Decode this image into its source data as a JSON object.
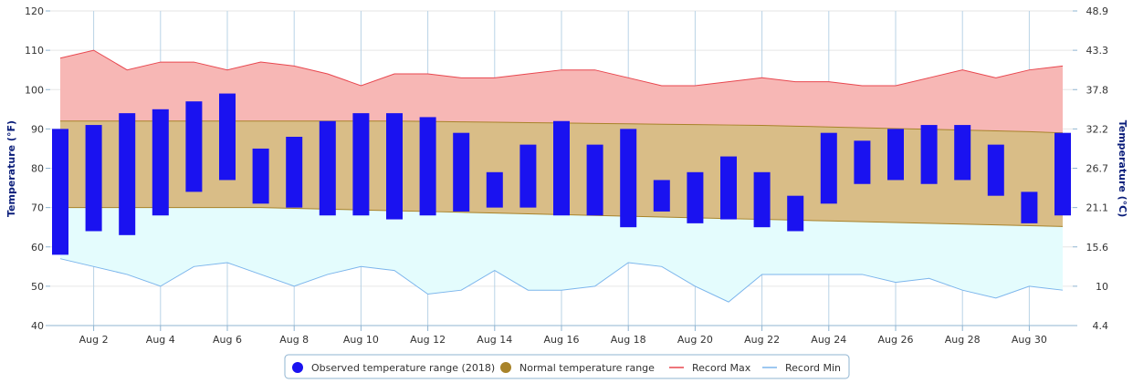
{
  "chart_data": {
    "type": "bar",
    "title": "",
    "x_tick_labels": [
      "Aug 2",
      "Aug 4",
      "Aug 6",
      "Aug 8",
      "Aug 10",
      "Aug 12",
      "Aug 14",
      "Aug 16",
      "Aug 18",
      "Aug 20",
      "Aug 22",
      "Aug 24",
      "Aug 26",
      "Aug 28",
      "Aug 30"
    ],
    "days": [
      1,
      2,
      3,
      4,
      5,
      6,
      7,
      8,
      9,
      10,
      11,
      12,
      13,
      14,
      15,
      16,
      17,
      18,
      19,
      20,
      21,
      22,
      23,
      24,
      25,
      26,
      27,
      28,
      29,
      30,
      31
    ],
    "y_left": {
      "label": "Temperature (°F)",
      "range": [
        40,
        120
      ],
      "ticks": [
        "120",
        "110",
        "100",
        "90",
        "80",
        "70",
        "60",
        "50",
        "40"
      ]
    },
    "y_right": {
      "label": "Temperature (°C)",
      "ticks": [
        "48.9",
        "43.3",
        "37.8",
        "32.2",
        "26.7",
        "21.1",
        "15.6",
        "10",
        "4.4"
      ]
    },
    "grid": true,
    "legend_position": "bottom",
    "series": [
      {
        "name": "Observed temperature range (2018)",
        "kind": "range-bar",
        "color": "#1a12f0",
        "low": [
          58,
          64,
          63,
          68,
          74,
          77,
          71,
          70,
          68,
          68,
          67,
          68,
          69,
          70,
          70,
          68,
          68,
          65,
          69,
          66,
          67,
          65,
          64,
          71,
          76,
          77,
          76,
          77,
          73,
          66,
          68
        ],
        "high": [
          90,
          91,
          94,
          95,
          97,
          99,
          85,
          88,
          92,
          94,
          94,
          93,
          89,
          79,
          86,
          92,
          86,
          90,
          77,
          79,
          83,
          79,
          73,
          89,
          87,
          90,
          91,
          91,
          86,
          74,
          89
        ]
      },
      {
        "name": "Normal temperature range",
        "kind": "band",
        "color": "#a8832a",
        "low": [
          70,
          70,
          70,
          70,
          70,
          70,
          70,
          69.8,
          69.6,
          69.4,
          69.2,
          69,
          68.8,
          68.6,
          68.4,
          68.2,
          68,
          67.8,
          67.6,
          67.4,
          67.2,
          67,
          66.8,
          66.6,
          66.4,
          66.2,
          66,
          65.8,
          65.6,
          65.4,
          65.2
        ],
        "high": [
          92,
          92,
          92,
          92,
          92,
          92,
          92,
          92,
          92,
          92,
          92,
          91.9,
          91.8,
          91.7,
          91.6,
          91.5,
          91.4,
          91.3,
          91.2,
          91.1,
          91,
          90.9,
          90.7,
          90.5,
          90.3,
          90.1,
          89.9,
          89.7,
          89.5,
          89.3,
          89
        ]
      },
      {
        "name": "Record Max",
        "kind": "line",
        "color": "#e8474f",
        "values": [
          108,
          110,
          105,
          107,
          107,
          105,
          107,
          106,
          104,
          101,
          104,
          104,
          103,
          103,
          104,
          105,
          105,
          103,
          101,
          101,
          102,
          103,
          102,
          102,
          101,
          101,
          103,
          105,
          103,
          105,
          106
        ]
      },
      {
        "name": "Record Min",
        "kind": "line",
        "color": "#7cb5ec",
        "values": [
          57,
          55,
          53,
          50,
          55,
          56,
          53,
          50,
          53,
          55,
          54,
          48,
          49,
          54,
          49,
          49,
          50,
          56,
          55,
          50,
          46,
          53,
          53,
          53,
          53,
          51,
          52,
          49,
          47,
          50,
          49
        ]
      }
    ]
  }
}
